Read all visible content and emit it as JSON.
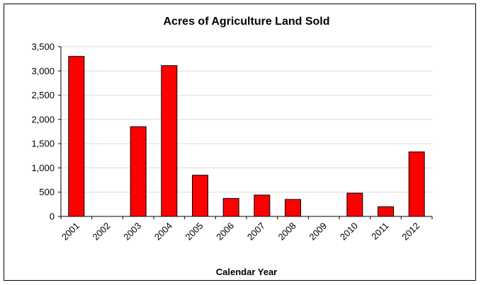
{
  "chart_data": {
    "type": "bar",
    "title": "Acres of Agriculture Land Sold",
    "xlabel": "Calendar Year",
    "ylabel": "",
    "categories": [
      "2001",
      "2002",
      "2003",
      "2004",
      "2005",
      "2006",
      "2007",
      "2008",
      "2009",
      "2010",
      "2011",
      "2012"
    ],
    "values": [
      3300,
      0,
      1850,
      3110,
      850,
      370,
      440,
      350,
      0,
      480,
      200,
      1330
    ],
    "ylim": [
      0,
      3500
    ],
    "yticks": [
      0,
      500,
      1000,
      1500,
      2000,
      2500,
      3000,
      3500
    ],
    "ytick_labels": [
      "0",
      "500",
      "1,000",
      "1,500",
      "2,000",
      "2,500",
      "3,000",
      "3,500"
    ],
    "grid": true,
    "legend": "none",
    "colors": {
      "bar": "#ff0000",
      "bar_outline": "#000000",
      "grid": "#dcdcdc",
      "axis": "#000000"
    }
  }
}
